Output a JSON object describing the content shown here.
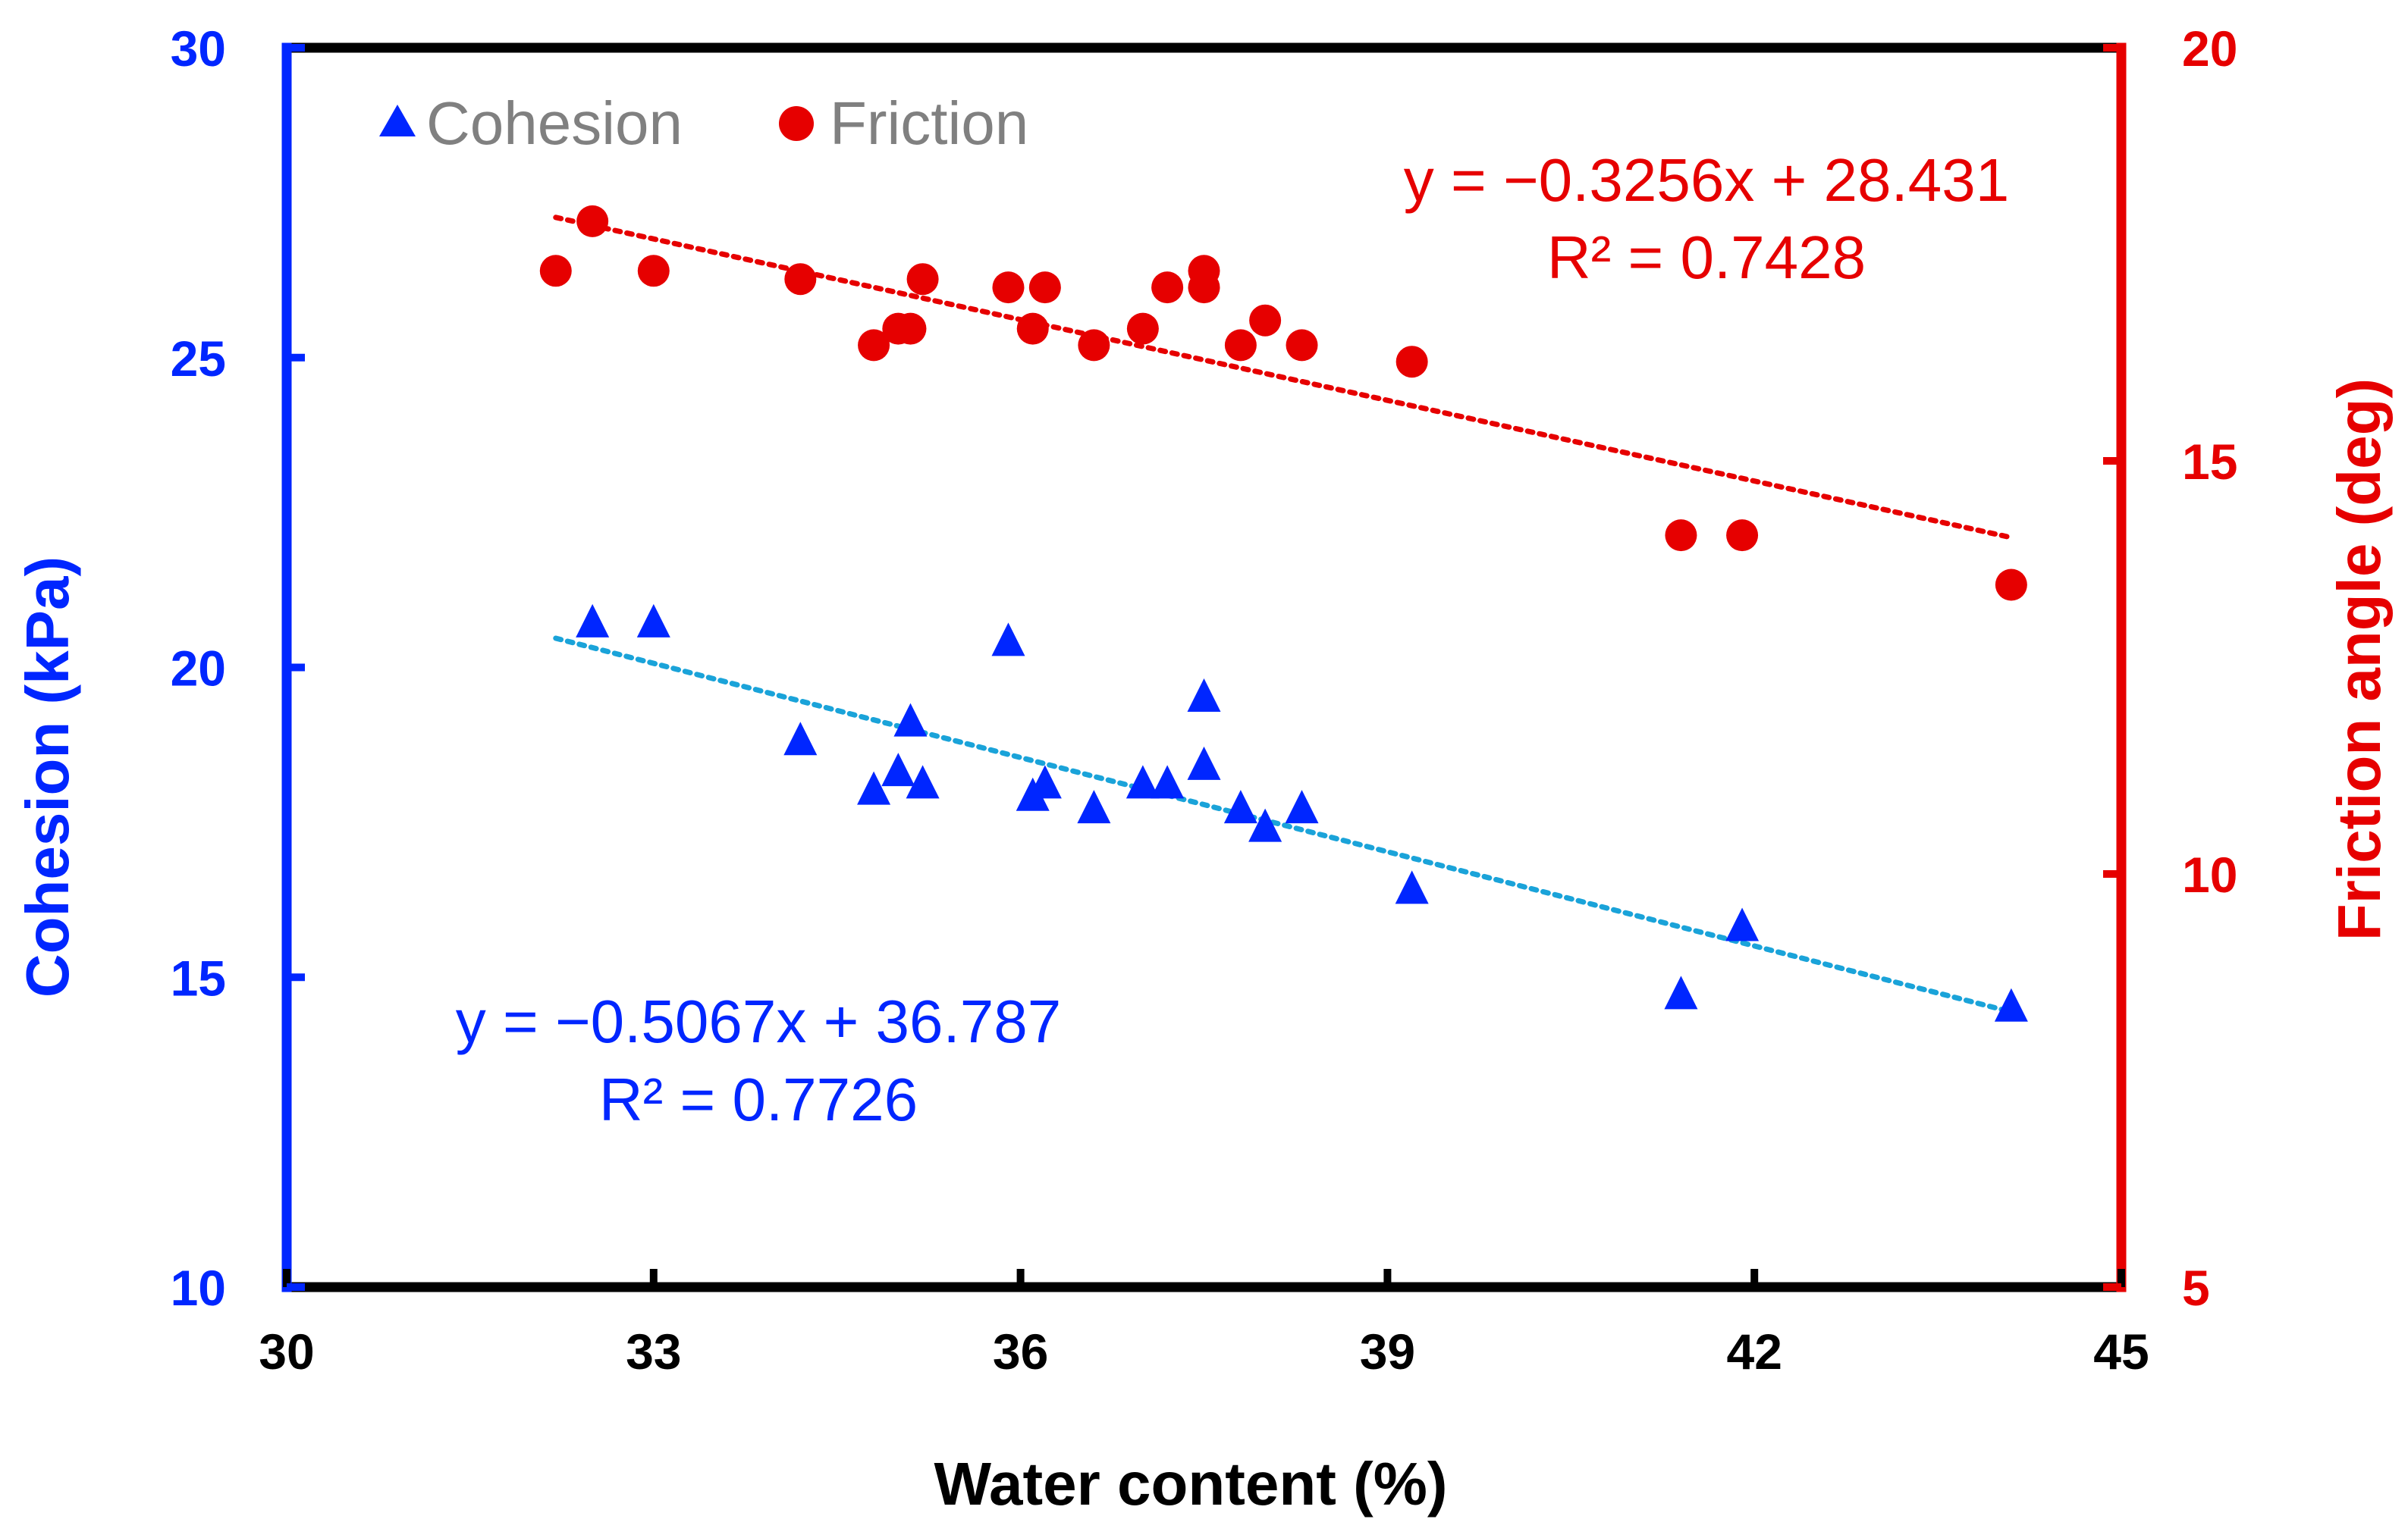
{
  "colors": {
    "cohesion": "#0026ff",
    "friction": "#e60000",
    "cohesion_trend": "#1aa3d9",
    "friction_trend": "#e60000",
    "frame": "#000000",
    "legend_text": "#808080"
  },
  "chart_data": {
    "type": "scatter",
    "title": "",
    "xlabel": "Water content (%)",
    "ylabel_left": "Cohesion (kPa)",
    "ylabel_right": "Friction angle (deg)",
    "xlim": [
      30,
      45
    ],
    "ylim_left": [
      10,
      30
    ],
    "ylim_right": [
      5,
      20
    ],
    "x_ticks": [
      30,
      33,
      36,
      39,
      42,
      45
    ],
    "y_left_ticks": [
      10,
      15,
      20,
      25,
      30
    ],
    "y_right_ticks": [
      5,
      10,
      15,
      20
    ],
    "grid": false,
    "legend": {
      "position": "top-left",
      "entries": [
        {
          "name": "Cohesion",
          "marker": "triangle"
        },
        {
          "name": "Friction",
          "marker": "circle"
        }
      ]
    },
    "series": [
      {
        "name": "Cohesion",
        "axis": "left",
        "marker": "triangle",
        "x": [
          32.5,
          33.0,
          34.2,
          34.8,
          35.0,
          35.1,
          35.2,
          35.9,
          36.1,
          36.2,
          36.6,
          37.0,
          37.2,
          37.5,
          37.5,
          37.8,
          38.0,
          38.3,
          39.2,
          41.4,
          41.9,
          44.1
        ],
        "y": [
          20.7,
          20.7,
          18.8,
          18.0,
          18.3,
          19.1,
          18.1,
          20.4,
          17.9,
          18.1,
          17.7,
          18.1,
          18.1,
          19.5,
          18.4,
          17.7,
          17.4,
          17.7,
          16.4,
          14.7,
          15.8,
          14.5
        ],
        "trendline": {
          "equation": "y = −0.5067x + 36.787",
          "r2": "R² = 0.7726",
          "slope": -0.5067,
          "intercept": 36.787,
          "x_range": [
            32.2,
            44.1
          ]
        }
      },
      {
        "name": "Friction",
        "axis": "right",
        "marker": "circle",
        "x": [
          32.2,
          32.5,
          33.0,
          34.2,
          34.8,
          35.0,
          35.1,
          35.2,
          35.9,
          36.1,
          36.2,
          36.6,
          37.0,
          37.2,
          37.5,
          37.5,
          37.8,
          38.0,
          38.3,
          39.2,
          41.4,
          41.9,
          44.1
        ],
        "y": [
          17.3,
          17.9,
          17.3,
          17.2,
          16.4,
          16.6,
          16.6,
          17.2,
          17.1,
          16.6,
          17.1,
          16.4,
          16.6,
          17.1,
          17.3,
          17.1,
          16.4,
          16.7,
          16.4,
          16.2,
          14.1,
          14.1,
          13.5
        ],
        "trendline": {
          "equation": "y = −0.3256x + 28.431",
          "r2": "R² = 0.7428",
          "slope": -0.3256,
          "intercept": 28.431,
          "x_range": [
            32.2,
            44.1
          ]
        }
      }
    ]
  }
}
